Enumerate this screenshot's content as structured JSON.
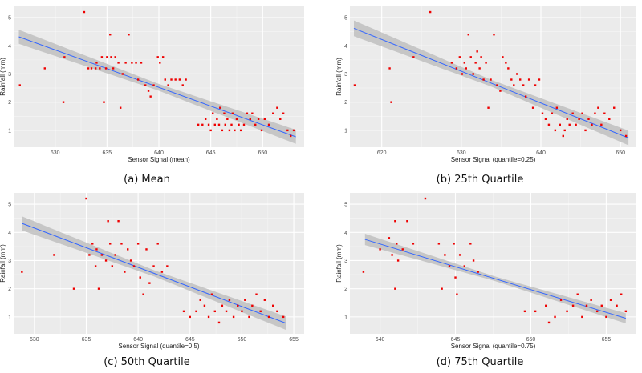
{
  "colors": {
    "panel_bg": "#ebebeb",
    "grid_major": "#ffffff",
    "grid_minor": "#f5f5f5",
    "point": "#ee0000",
    "fit_line": "#3366ff",
    "confidence_band": "#bfbfbf"
  },
  "chart_data": [
    {
      "type": "scatter",
      "caption": "(a) Mean",
      "xlabel": "Sensor Signal (mean)",
      "ylabel": "Rainfall (mm)",
      "xlim": [
        626,
        654
      ],
      "ylim": [
        0.4,
        5.4
      ],
      "xticks": [
        630,
        635,
        640,
        645,
        650
      ],
      "yticks": [
        1,
        2,
        3,
        4,
        5
      ],
      "grid": true,
      "fit": {
        "x": [
          626.5,
          653.2
        ],
        "y": [
          4.32,
          0.77
        ],
        "band_halfwidth": [
          0.25,
          0.12,
          0.25
        ]
      },
      "points": [
        [
          626.6,
          2.6
        ],
        [
          629.0,
          3.2
        ],
        [
          630.9,
          3.6
        ],
        [
          630.8,
          2.0
        ],
        [
          632.8,
          5.2
        ],
        [
          633.2,
          3.2
        ],
        [
          633.5,
          3.2
        ],
        [
          633.9,
          3.2
        ],
        [
          634.0,
          3.4
        ],
        [
          634.3,
          3.2
        ],
        [
          634.5,
          3.6
        ],
        [
          634.7,
          2.0
        ],
        [
          634.9,
          3.2
        ],
        [
          635.0,
          3.6
        ],
        [
          635.3,
          4.4
        ],
        [
          635.4,
          3.6
        ],
        [
          635.6,
          3.2
        ],
        [
          635.8,
          3.6
        ],
        [
          636.1,
          3.4
        ],
        [
          636.3,
          1.8
        ],
        [
          636.5,
          3.0
        ],
        [
          636.8,
          3.4
        ],
        [
          637.1,
          4.4
        ],
        [
          637.4,
          3.4
        ],
        [
          637.8,
          3.4
        ],
        [
          638.0,
          2.8
        ],
        [
          638.3,
          3.4
        ],
        [
          638.7,
          2.6
        ],
        [
          639.0,
          2.4
        ],
        [
          639.2,
          2.2
        ],
        [
          639.5,
          2.6
        ],
        [
          639.9,
          3.6
        ],
        [
          640.1,
          3.4
        ],
        [
          640.4,
          3.6
        ],
        [
          640.6,
          2.8
        ],
        [
          640.9,
          2.6
        ],
        [
          641.2,
          2.8
        ],
        [
          641.6,
          2.8
        ],
        [
          642.0,
          2.8
        ],
        [
          642.3,
          2.6
        ],
        [
          642.6,
          2.8
        ],
        [
          643.8,
          1.2
        ],
        [
          644.2,
          1.2
        ],
        [
          644.5,
          1.4
        ],
        [
          644.8,
          1.2
        ],
        [
          645.0,
          1.0
        ],
        [
          645.2,
          1.6
        ],
        [
          645.4,
          1.2
        ],
        [
          645.6,
          1.4
        ],
        [
          645.8,
          1.2
        ],
        [
          645.9,
          1.8
        ],
        [
          646.1,
          1.0
        ],
        [
          646.3,
          1.6
        ],
        [
          646.4,
          1.2
        ],
        [
          646.6,
          1.4
        ],
        [
          646.8,
          1.0
        ],
        [
          647.0,
          1.2
        ],
        [
          647.1,
          1.6
        ],
        [
          647.3,
          1.0
        ],
        [
          647.5,
          1.4
        ],
        [
          647.7,
          1.2
        ],
        [
          647.9,
          1.0
        ],
        [
          648.2,
          1.2
        ],
        [
          648.5,
          1.6
        ],
        [
          648.8,
          1.4
        ],
        [
          649.0,
          1.6
        ],
        [
          649.3,
          1.2
        ],
        [
          649.6,
          1.4
        ],
        [
          649.9,
          1.0
        ],
        [
          650.2,
          1.4
        ],
        [
          650.6,
          1.2
        ],
        [
          651.0,
          1.6
        ],
        [
          651.4,
          1.8
        ],
        [
          651.7,
          1.4
        ],
        [
          652.0,
          1.6
        ],
        [
          652.4,
          1.0
        ],
        [
          653.0,
          1.0
        ],
        [
          652.7,
          0.8
        ]
      ]
    },
    {
      "type": "scatter",
      "caption": "(b) 25th Quartile",
      "xlabel": "Sensor Signal (quantile=0.25)",
      "ylabel": "Rainfall (mm)",
      "xlim": [
        616,
        652
      ],
      "ylim": [
        0.4,
        5.4
      ],
      "xticks": [
        620,
        630,
        640,
        650
      ],
      "yticks": [
        1,
        2,
        3,
        4,
        5
      ],
      "grid": true,
      "fit": {
        "x": [
          616.5,
          651.0
        ],
        "y": [
          4.62,
          0.73
        ],
        "band_halfwidth": [
          0.28,
          0.12,
          0.26
        ]
      },
      "points": [
        [
          616.6,
          2.6
        ],
        [
          621.0,
          3.2
        ],
        [
          621.2,
          2.0
        ],
        [
          624.0,
          3.6
        ],
        [
          626.1,
          5.2
        ],
        [
          628.8,
          3.4
        ],
        [
          629.4,
          3.2
        ],
        [
          629.8,
          3.6
        ],
        [
          630.1,
          3.0
        ],
        [
          630.4,
          3.4
        ],
        [
          630.6,
          3.2
        ],
        [
          630.9,
          4.4
        ],
        [
          631.2,
          3.6
        ],
        [
          631.5,
          3.0
        ],
        [
          631.8,
          3.4
        ],
        [
          632.0,
          3.8
        ],
        [
          632.3,
          3.2
        ],
        [
          632.5,
          3.6
        ],
        [
          632.8,
          2.8
        ],
        [
          633.1,
          3.4
        ],
        [
          633.4,
          1.8
        ],
        [
          633.7,
          2.8
        ],
        [
          634.1,
          4.4
        ],
        [
          634.5,
          2.6
        ],
        [
          634.9,
          2.4
        ],
        [
          635.2,
          3.6
        ],
        [
          635.6,
          3.4
        ],
        [
          635.9,
          3.2
        ],
        [
          636.3,
          2.8
        ],
        [
          636.6,
          2.6
        ],
        [
          637.0,
          3.0
        ],
        [
          637.4,
          2.8
        ],
        [
          637.8,
          2.6
        ],
        [
          638.1,
          2.2
        ],
        [
          638.5,
          2.8
        ],
        [
          639.0,
          1.8
        ],
        [
          639.3,
          2.6
        ],
        [
          639.8,
          2.8
        ],
        [
          640.2,
          1.6
        ],
        [
          640.6,
          1.4
        ],
        [
          641.0,
          1.2
        ],
        [
          641.4,
          1.6
        ],
        [
          641.8,
          1.0
        ],
        [
          642.0,
          1.8
        ],
        [
          642.4,
          1.2
        ],
        [
          642.8,
          0.8
        ],
        [
          643.0,
          1.0
        ],
        [
          643.3,
          1.4
        ],
        [
          643.6,
          1.2
        ],
        [
          644.0,
          1.6
        ],
        [
          644.4,
          1.2
        ],
        [
          644.8,
          1.4
        ],
        [
          645.2,
          1.6
        ],
        [
          645.6,
          1.0
        ],
        [
          646.0,
          1.4
        ],
        [
          646.4,
          1.2
        ],
        [
          646.8,
          1.6
        ],
        [
          647.2,
          1.8
        ],
        [
          647.6,
          1.2
        ],
        [
          648.0,
          1.6
        ],
        [
          648.6,
          1.4
        ],
        [
          649.2,
          1.8
        ],
        [
          650.0,
          1.0
        ],
        [
          650.7,
          0.8
        ]
      ]
    },
    {
      "type": "scatter",
      "caption": "(c) 50th Quartile",
      "xlabel": "Sensor Signal (quantile=0.5)",
      "ylabel": "Rainfall (mm)",
      "xlim": [
        628,
        656
      ],
      "ylim": [
        0.4,
        5.4
      ],
      "xticks": [
        630,
        635,
        640,
        645,
        650,
        655
      ],
      "yticks": [
        1,
        2,
        3,
        4,
        5
      ],
      "grid": true,
      "fit": {
        "x": [
          628.8,
          654.3
        ],
        "y": [
          4.32,
          0.77
        ],
        "band_halfwidth": [
          0.25,
          0.11,
          0.24
        ]
      },
      "points": [
        [
          628.8,
          2.6
        ],
        [
          631.9,
          3.2
        ],
        [
          633.8,
          2.0
        ],
        [
          635.0,
          5.2
        ],
        [
          635.3,
          3.2
        ],
        [
          635.6,
          3.6
        ],
        [
          635.9,
          2.8
        ],
        [
          636.0,
          3.4
        ],
        [
          636.2,
          2.0
        ],
        [
          636.5,
          3.2
        ],
        [
          636.9,
          3.0
        ],
        [
          637.1,
          4.4
        ],
        [
          637.3,
          3.6
        ],
        [
          637.5,
          2.8
        ],
        [
          637.8,
          3.2
        ],
        [
          638.1,
          4.4
        ],
        [
          638.4,
          3.6
        ],
        [
          638.7,
          2.6
        ],
        [
          639.0,
          3.4
        ],
        [
          639.3,
          3.0
        ],
        [
          639.6,
          2.8
        ],
        [
          640.0,
          3.6
        ],
        [
          640.2,
          2.4
        ],
        [
          640.5,
          1.8
        ],
        [
          640.8,
          3.4
        ],
        [
          641.1,
          2.2
        ],
        [
          641.5,
          2.8
        ],
        [
          641.9,
          3.6
        ],
        [
          642.3,
          2.6
        ],
        [
          642.8,
          2.8
        ],
        [
          644.4,
          1.2
        ],
        [
          645.0,
          1.0
        ],
        [
          645.6,
          1.2
        ],
        [
          646.0,
          1.6
        ],
        [
          646.4,
          1.4
        ],
        [
          646.8,
          1.0
        ],
        [
          647.1,
          1.8
        ],
        [
          647.4,
          1.2
        ],
        [
          647.8,
          0.8
        ],
        [
          648.1,
          1.4
        ],
        [
          648.5,
          1.2
        ],
        [
          648.8,
          1.6
        ],
        [
          649.2,
          1.0
        ],
        [
          649.6,
          1.4
        ],
        [
          650.0,
          1.2
        ],
        [
          650.3,
          1.6
        ],
        [
          650.7,
          1.0
        ],
        [
          651.0,
          1.4
        ],
        [
          651.4,
          1.8
        ],
        [
          651.8,
          1.2
        ],
        [
          652.2,
          1.6
        ],
        [
          652.6,
          1.0
        ],
        [
          653.0,
          1.4
        ],
        [
          653.4,
          1.2
        ],
        [
          654.0,
          1.0
        ]
      ]
    },
    {
      "type": "scatter",
      "caption": "(d) 75th Quartile",
      "xlabel": "Sensor Signal (quantile=0.75)",
      "ylabel": "Rainfall (mm)",
      "xlim": [
        638,
        657
      ],
      "ylim": [
        0.4,
        5.4
      ],
      "xticks": [
        640,
        645,
        650,
        655
      ],
      "yticks": [
        1,
        2,
        3,
        4,
        5
      ],
      "grid": true,
      "fit": {
        "x": [
          639.0,
          656.3
        ],
        "y": [
          3.75,
          0.95
        ],
        "band_halfwidth": [
          0.2,
          0.08,
          0.18
        ]
      },
      "points": [
        [
          638.9,
          2.6
        ],
        [
          640.0,
          3.4
        ],
        [
          640.6,
          3.8
        ],
        [
          640.8,
          3.2
        ],
        [
          641.0,
          4.4
        ],
        [
          641.0,
          2.0
        ],
        [
          641.1,
          3.6
        ],
        [
          641.2,
          3.0
        ],
        [
          641.5,
          3.4
        ],
        [
          641.8,
          4.4
        ],
        [
          642.2,
          3.6
        ],
        [
          643.0,
          5.2
        ],
        [
          643.9,
          3.6
        ],
        [
          644.1,
          2.0
        ],
        [
          644.3,
          3.2
        ],
        [
          644.6,
          2.8
        ],
        [
          644.9,
          3.6
        ],
        [
          645.0,
          2.4
        ],
        [
          645.1,
          1.8
        ],
        [
          645.3,
          3.2
        ],
        [
          645.6,
          2.8
        ],
        [
          646.0,
          3.6
        ],
        [
          646.2,
          3.0
        ],
        [
          646.5,
          2.6
        ],
        [
          649.6,
          1.2
        ],
        [
          650.3,
          1.2
        ],
        [
          651.0,
          1.4
        ],
        [
          651.2,
          0.8
        ],
        [
          651.6,
          1.0
        ],
        [
          652.0,
          1.6
        ],
        [
          652.4,
          1.2
        ],
        [
          652.8,
          1.4
        ],
        [
          653.1,
          1.8
        ],
        [
          653.4,
          1.0
        ],
        [
          653.7,
          1.4
        ],
        [
          654.0,
          1.6
        ],
        [
          654.4,
          1.2
        ],
        [
          654.7,
          1.4
        ],
        [
          655.0,
          1.0
        ],
        [
          655.3,
          1.6
        ],
        [
          655.7,
          1.4
        ],
        [
          656.0,
          1.8
        ],
        [
          656.3,
          1.2
        ]
      ]
    }
  ]
}
